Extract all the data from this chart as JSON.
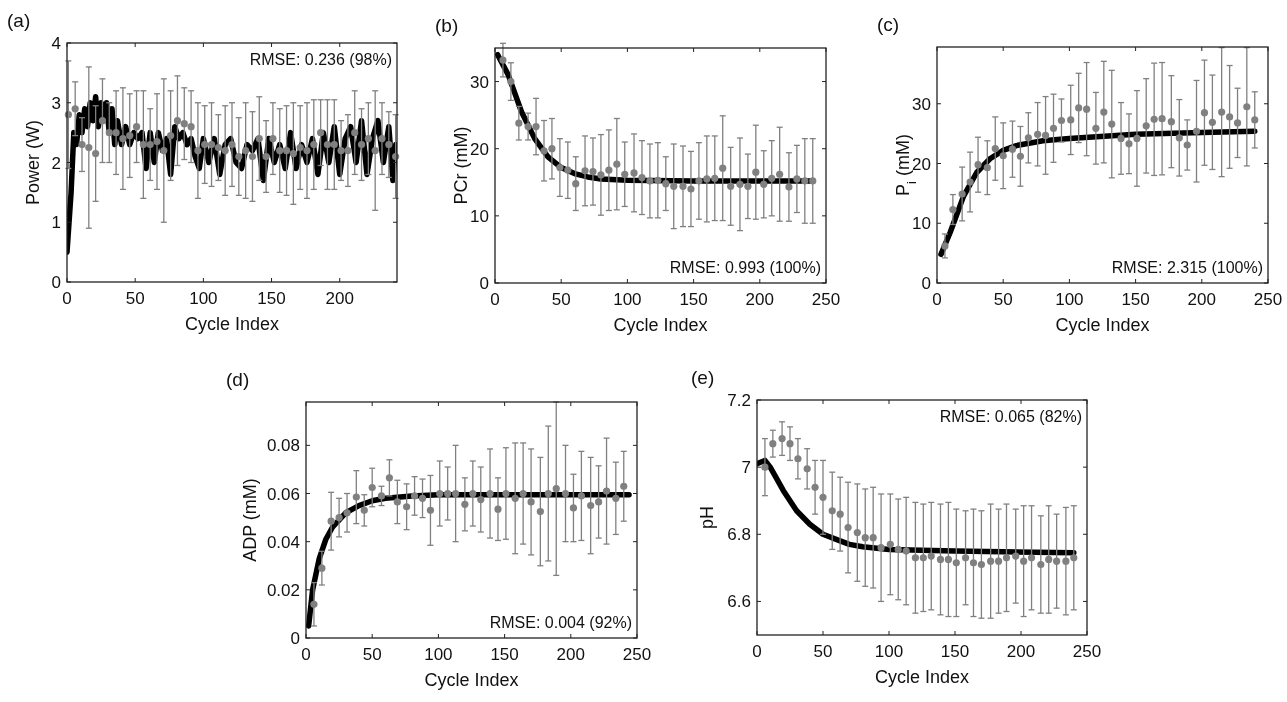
{
  "chart_data": [
    {
      "type": "scatter",
      "title": "(a)",
      "xlabel": "Cycle Index",
      "ylabel": "Power (W)",
      "xlim": [
        0,
        242
      ],
      "xticks": [
        0,
        50,
        100,
        150,
        200
      ],
      "ylim": [
        0,
        4
      ],
      "yticks": [
        0,
        1,
        2,
        3,
        4
      ],
      "annotations": [
        "RMSE: 0.236 (98%)"
      ],
      "series": [
        {
          "marker": "circle",
          "color": "#808080",
          "x": [
            1,
            6,
            11,
            16,
            21,
            26,
            31,
            36,
            41,
            46,
            51,
            56,
            61,
            66,
            71,
            76,
            81,
            86,
            91,
            96,
            101,
            106,
            111,
            116,
            121,
            126,
            131,
            136,
            141,
            146,
            151,
            156,
            161,
            166,
            171,
            176,
            181,
            186,
            191,
            196,
            201,
            206,
            211,
            216,
            221,
            226,
            231,
            236,
            241
          ],
          "values": [
            2.8,
            2.9,
            2.3,
            2.25,
            2.15,
            2.7,
            2.5,
            2.5,
            2.4,
            2.45,
            2.6,
            2.3,
            2.3,
            2.35,
            2.2,
            2.45,
            2.7,
            2.65,
            2.6,
            2.2,
            2.3,
            2.3,
            2.25,
            2.2,
            2.3,
            2.1,
            2.2,
            2.1,
            2.4,
            2.1,
            2.4,
            2.2,
            2.2,
            2.15,
            2.25,
            2.2,
            2.3,
            2.5,
            2.3,
            2.3,
            2.2,
            2.2,
            2.5,
            2.3,
            2.4,
            2.2,
            2.4,
            2.3,
            2.1
          ],
          "errors": [
            0.9,
            0.45,
            0.45,
            1.35,
            0.8,
            0.7,
            0.5,
            0.7,
            0.85,
            0.7,
            0.6,
            0.9,
            0.6,
            0.8,
            1.2,
            0.75,
            0.75,
            0.6,
            0.6,
            0.8,
            0.65,
            0.7,
            0.55,
            0.75,
            0.7,
            0.65,
            0.8,
            0.75,
            0.7,
            0.6,
            0.6,
            0.7,
            0.75,
            0.85,
            0.7,
            0.8,
            0.75,
            0.55,
            0.75,
            0.75,
            0.5,
            0.6,
            0.7,
            0.6,
            0.6,
            1.0,
            0.6,
            0.55,
            0.7
          ]
        },
        {
          "type": "line",
          "color": "#000000",
          "x": [
            0,
            3,
            5,
            7,
            9,
            11,
            13,
            15,
            17,
            19,
            21,
            23,
            25,
            27,
            29,
            31,
            33,
            35,
            37,
            40,
            43,
            46,
            49,
            52,
            55,
            58,
            61,
            64,
            67,
            70,
            73,
            76,
            79,
            82,
            85,
            88,
            91,
            94,
            97,
            100,
            104,
            108,
            112,
            116,
            120,
            124,
            128,
            132,
            136,
            140,
            144,
            148,
            152,
            156,
            160,
            164,
            168,
            172,
            176,
            180,
            184,
            188,
            192,
            196,
            200,
            204,
            208,
            212,
            216,
            220,
            224,
            228,
            232,
            236,
            239,
            241
          ],
          "values": [
            0.5,
            1.5,
            2.5,
            2.3,
            2.8,
            2.5,
            2.9,
            2.6,
            3.0,
            2.7,
            3.1,
            2.6,
            3.0,
            2.7,
            3.0,
            2.5,
            2.9,
            2.3,
            2.7,
            2.3,
            2.6,
            2.3,
            2.5,
            2.4,
            2.5,
            1.9,
            2.5,
            2.0,
            2.5,
            2.2,
            2.4,
            1.8,
            2.6,
            2.4,
            2.5,
            2.3,
            2.4,
            2.1,
            1.9,
            2.4,
            2.0,
            2.4,
            1.8,
            2.3,
            2.4,
            2.0,
            1.9,
            2.3,
            2.2,
            2.4,
            1.7,
            2.4,
            2.0,
            2.3,
            1.9,
            2.5,
            1.9,
            2.3,
            2.0,
            2.4,
            1.8,
            2.5,
            2.0,
            2.6,
            1.8,
            2.4,
            2.6,
            2.0,
            2.7,
            1.8,
            2.4,
            2.7,
            2.0,
            2.6,
            1.7,
            2.3
          ]
        }
      ]
    },
    {
      "type": "scatter",
      "title": "(b)",
      "xlabel": "Cycle Index",
      "ylabel": "PCr (mM)",
      "xlim": [
        0,
        250
      ],
      "xticks": [
        0,
        50,
        100,
        150,
        200,
        250
      ],
      "ylim": [
        0,
        35
      ],
      "yticks": [
        0,
        10,
        20,
        30
      ],
      "annotations": [
        "RMSE: 0.993 (100%)"
      ],
      "series": [
        {
          "marker": "circle",
          "color": "#808080",
          "x": [
            6,
            12,
            18,
            25,
            31,
            37,
            43,
            49,
            55,
            61,
            68,
            74,
            80,
            86,
            92,
            98,
            105,
            111,
            117,
            123,
            129,
            135,
            142,
            148,
            154,
            160,
            166,
            172,
            178,
            185,
            191,
            197,
            203,
            209,
            215,
            222,
            228,
            234,
            240
          ],
          "values": [
            33.2,
            30.0,
            23.8,
            23.3,
            23.3,
            19.7,
            20.0,
            17.2,
            16.8,
            14.8,
            16.7,
            16.6,
            16.1,
            16.8,
            17.7,
            16.2,
            16.4,
            15.7,
            15.2,
            15.3,
            14.8,
            14.4,
            14.4,
            14.0,
            15.2,
            15.5,
            15.6,
            17.1,
            14.4,
            14.7,
            14.4,
            16.5,
            14.7,
            15.6,
            16.2,
            14.3,
            15.5,
            15.2,
            15.2
          ],
          "errors": [
            2.5,
            2.8,
            2.5,
            2,
            4.2,
            4.5,
            4.5,
            4.3,
            4.2,
            4,
            5.2,
            5,
            6,
            6,
            6.8,
            4.8,
            5.8,
            5.5,
            5.5,
            5.6,
            4,
            6.3,
            6,
            5.6,
            5.7,
            6.4,
            6.3,
            7.8,
            5.8,
            6.9,
            4.8,
            7,
            5,
            5.6,
            7,
            5.1,
            5,
            6.3,
            6.3
          ]
        },
        {
          "type": "line",
          "color": "#000000",
          "x": [
            2,
            10,
            20,
            30,
            40,
            50,
            60,
            70,
            80,
            100,
            150,
            240
          ],
          "values": [
            34,
            31,
            25.5,
            21.5,
            18.8,
            17.2,
            16.3,
            15.8,
            15.5,
            15.3,
            15.2,
            15.2
          ]
        }
      ]
    },
    {
      "type": "scatter",
      "title": "(c)",
      "xlabel": "Cycle Index",
      "ylabel": "P$_{i}$ (mM)",
      "xlim": [
        0,
        250
      ],
      "xticks": [
        0,
        50,
        100,
        150,
        200,
        250
      ],
      "ylim": [
        0,
        39.5
      ],
      "yticks": [
        0,
        10,
        20,
        30
      ],
      "annotations": [
        "RMSE: 2.315 (100%)"
      ],
      "series": [
        {
          "marker": "circle",
          "color": "#808080",
          "x": [
            6,
            12,
            19,
            25,
            31,
            38,
            44,
            50,
            57,
            63,
            69,
            76,
            82,
            88,
            94,
            101,
            107,
            113,
            120,
            126,
            132,
            139,
            145,
            151,
            158,
            164,
            170,
            177,
            183,
            189,
            196,
            202,
            208,
            215,
            221,
            227,
            234,
            240
          ],
          "values": [
            6.2,
            12.3,
            14.9,
            16.9,
            19.8,
            19.3,
            22.5,
            21.3,
            22.4,
            21.2,
            24.3,
            24.9,
            24.7,
            25.9,
            27.2,
            27.3,
            29.3,
            29.1,
            25.9,
            28.6,
            26.6,
            24.2,
            23.3,
            24.2,
            26.3,
            27.4,
            27.5,
            27.0,
            24.3,
            23.1,
            25.4,
            28.5,
            26.9,
            28.6,
            27.8,
            26.8,
            29.5,
            27.3
          ],
          "errors": [
            2,
            2.5,
            4.5,
            5,
            4.6,
            4.5,
            5.3,
            5.5,
            4.7,
            5,
            4.2,
            5.3,
            6.5,
            5.7,
            3.6,
            5.8,
            5.8,
            7.8,
            6,
            8.5,
            9,
            6,
            5,
            8,
            7.9,
            9.4,
            9.4,
            7.7,
            6.4,
            4.2,
            8.5,
            8.8,
            7.9,
            10.8,
            8.6,
            5.8,
            9.9,
            4.7
          ]
        },
        {
          "type": "line",
          "color": "#000000",
          "x": [
            3,
            10,
            20,
            30,
            40,
            50,
            60,
            80,
            100,
            150,
            200,
            240
          ],
          "values": [
            4.8,
            8.5,
            14.5,
            18.5,
            20.8,
            22.2,
            23,
            23.8,
            24.2,
            24.9,
            25.2,
            25.4
          ]
        }
      ]
    },
    {
      "type": "scatter",
      "title": "(d)",
      "xlabel": "Cycle Index",
      "ylabel": "ADP (mM)",
      "xlim": [
        0,
        250
      ],
      "xticks": [
        0,
        50,
        100,
        150,
        200,
        250
      ],
      "ylim": [
        0,
        0.098
      ],
      "yticks": [
        0,
        0.02,
        0.04,
        0.06,
        0.08
      ],
      "annotations": [
        "RMSE: 0.004 (92%)"
      ],
      "series": [
        {
          "marker": "circle",
          "color": "#808080",
          "x": [
            6,
            12,
            19,
            25,
            31,
            38,
            44,
            50,
            57,
            63,
            69,
            76,
            82,
            88,
            94,
            101,
            107,
            113,
            120,
            126,
            132,
            139,
            145,
            151,
            158,
            164,
            170,
            177,
            183,
            189,
            196,
            202,
            208,
            215,
            221,
            227,
            234,
            240
          ],
          "values": [
            0.014,
            0.029,
            0.0485,
            0.05,
            0.052,
            0.0585,
            0.053,
            0.0625,
            0.059,
            0.0665,
            0.0565,
            0.0545,
            0.059,
            0.058,
            0.053,
            0.06,
            0.06,
            0.06,
            0.0555,
            0.06,
            0.0575,
            0.06,
            0.0535,
            0.06,
            0.058,
            0.06,
            0.0565,
            0.0525,
            0.06,
            0.062,
            0.06,
            0.054,
            0.059,
            0.055,
            0.0565,
            0.061,
            0.058,
            0.063
          ],
          "errors": [
            0.009,
            0.007,
            0.012,
            0.008,
            0.008,
            0.011,
            0.0065,
            0.008,
            0.004,
            0.0075,
            0.009,
            0.0095,
            0.008,
            0.008,
            0.0145,
            0.0135,
            0.011,
            0.02,
            0.011,
            0.0135,
            0.0135,
            0.0185,
            0.013,
            0.019,
            0.023,
            0.021,
            0.022,
            0.0225,
            0.028,
            0.036,
            0.02,
            0.014,
            0.0185,
            0.02,
            0.015,
            0.022,
            0.015,
            0.0145
          ]
        },
        {
          "type": "line",
          "color": "#000000",
          "x": [
            2,
            5,
            10,
            15,
            20,
            30,
            40,
            50,
            60,
            80,
            100,
            244
          ],
          "values": [
            0.005,
            0.02,
            0.033,
            0.041,
            0.046,
            0.052,
            0.055,
            0.057,
            0.058,
            0.059,
            0.0595,
            0.0595
          ]
        }
      ]
    },
    {
      "type": "scatter",
      "title": "(e)",
      "xlabel": "Cycle Index",
      "ylabel": "pH",
      "xlim": [
        0,
        250
      ],
      "xticks": [
        0,
        50,
        100,
        150,
        200,
        250
      ],
      "ylim": [
        6.5,
        7.2
      ],
      "yticks": [
        6.6,
        6.8,
        7,
        7.2
      ],
      "annotations": [
        "RMSE: 0.065 (82%)"
      ],
      "series": [
        {
          "marker": "circle",
          "color": "#808080",
          "x": [
            6,
            12,
            19,
            25,
            31,
            38,
            44,
            50,
            57,
            63,
            69,
            76,
            82,
            88,
            94,
            101,
            107,
            113,
            120,
            126,
            132,
            139,
            145,
            151,
            158,
            164,
            170,
            177,
            183,
            189,
            196,
            202,
            208,
            215,
            221,
            227,
            234,
            240
          ],
          "values": [
            7.0,
            7.07,
            7.085,
            7.07,
            7.025,
            6.995,
            6.94,
            6.91,
            6.87,
            6.86,
            6.82,
            6.805,
            6.79,
            6.79,
            6.76,
            6.77,
            6.755,
            6.75,
            6.73,
            6.73,
            6.735,
            6.725,
            6.725,
            6.715,
            6.73,
            6.715,
            6.71,
            6.72,
            6.72,
            6.73,
            6.735,
            6.72,
            6.73,
            6.71,
            6.725,
            6.72,
            6.72,
            6.73
          ],
          "errors": [
            0.085,
            0.04,
            0.05,
            0.05,
            0.06,
            0.06,
            0.08,
            0.11,
            0.115,
            0.11,
            0.135,
            0.145,
            0.145,
            0.15,
            0.16,
            0.15,
            0.15,
            0.16,
            0.165,
            0.16,
            0.16,
            0.165,
            0.17,
            0.16,
            0.14,
            0.16,
            0.16,
            0.17,
            0.155,
            0.16,
            0.14,
            0.165,
            0.155,
            0.145,
            0.16,
            0.14,
            0.16,
            0.155
          ]
        },
        {
          "type": "line",
          "color": "#000000",
          "x": [
            0,
            6,
            10,
            20,
            30,
            40,
            50,
            60,
            70,
            80,
            100,
            150,
            240
          ],
          "values": [
            7.01,
            7.02,
            7.0,
            6.93,
            6.87,
            6.83,
            6.8,
            6.785,
            6.77,
            6.763,
            6.755,
            6.75,
            6.745
          ]
        }
      ]
    }
  ]
}
